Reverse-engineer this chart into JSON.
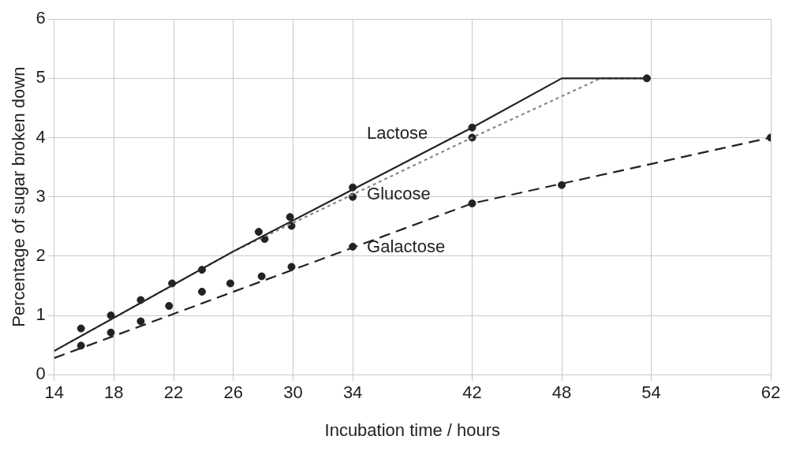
{
  "chart_data": {
    "type": "line",
    "xlabel": "Incubation time / hours",
    "ylabel": "Percentage of sugar broken down",
    "xlim": [
      14,
      62
    ],
    "xticks": [
      14,
      18,
      22,
      26,
      30,
      34,
      42,
      48,
      54,
      62
    ],
    "ylim": [
      0,
      6
    ],
    "yticks": [
      0,
      1,
      2,
      3,
      4,
      5,
      6
    ],
    "grid": true,
    "legend": false,
    "series": [
      {
        "name": "Lactose",
        "type": "line",
        "color": "#222222",
        "line_style": "solid",
        "marker": "none",
        "x": [
          14,
          26,
          42,
          48,
          53.7
        ],
        "values": [
          0.4,
          2.08,
          4.17,
          5,
          5
        ]
      },
      {
        "name": "Glucose",
        "type": "line",
        "color": "#888888",
        "line_style": "dotted",
        "marker": "none",
        "x": [
          14,
          26,
          42,
          50.6,
          53.7
        ],
        "values": [
          0.4,
          2.08,
          4.0,
          5,
          5
        ]
      },
      {
        "name": "Galactose",
        "type": "line",
        "color": "#222222",
        "line_style": "dashed",
        "marker": "none",
        "x": [
          14,
          42,
          62
        ],
        "values": [
          0.28,
          2.89,
          4.0
        ]
      },
      {
        "type": "scatter",
        "color": "#222222",
        "marker": "circle",
        "x": [
          15.8,
          17.8,
          19.8,
          21.9,
          23.9,
          27.7,
          28.1,
          29.8,
          29.9,
          34,
          34,
          42,
          42,
          53.7
        ],
        "values": [
          0.78,
          1.0,
          1.26,
          1.54,
          1.77,
          2.41,
          2.29,
          2.66,
          2.51,
          3.16,
          3.0,
          4.17,
          4.0,
          5.0
        ]
      },
      {
        "type": "scatter",
        "color": "#222222",
        "marker": "circle",
        "x": [
          15.8,
          17.8,
          19.8,
          21.7,
          23.9,
          25.8,
          27.9,
          29.9,
          34,
          42,
          48,
          62
        ],
        "values": [
          0.49,
          0.71,
          0.9,
          1.16,
          1.4,
          1.54,
          1.66,
          1.82,
          2.16,
          2.89,
          3.2,
          4.0
        ]
      }
    ]
  }
}
